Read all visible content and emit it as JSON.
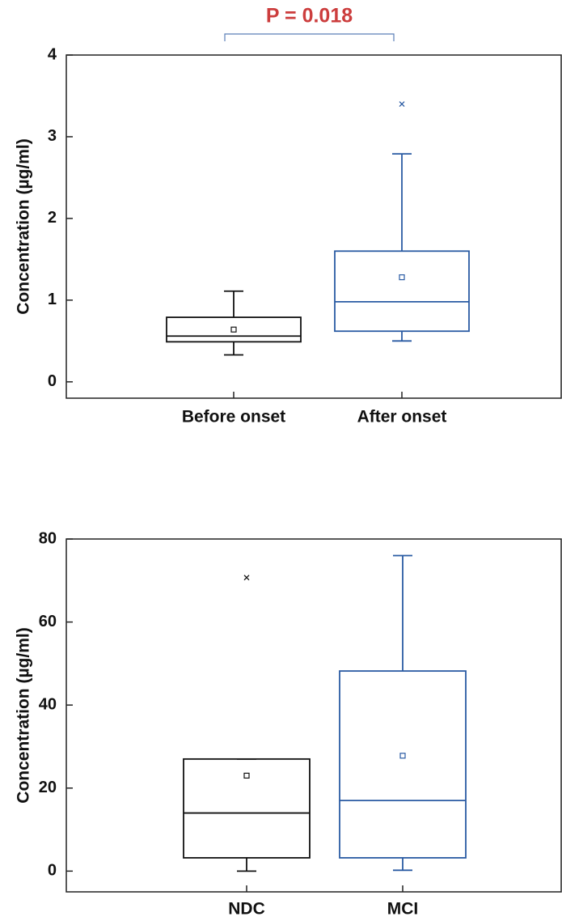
{
  "chart_data": [
    {
      "type": "box",
      "ylabel": "Concentration (µg/ml)",
      "annotation": "P = 0.018",
      "categories": [
        "Before onset",
        "After onset"
      ],
      "series": [
        {
          "color": "#111111",
          "whisker_low": 0.33,
          "q1": 0.49,
          "median": 0.56,
          "mean": 0.64,
          "q3": 0.79,
          "whisker_high": 1.11,
          "outliers": []
        },
        {
          "color": "#2a5ba3",
          "whisker_low": 0.5,
          "q1": 0.62,
          "median": 0.98,
          "mean": 1.28,
          "q3": 1.6,
          "whisker_high": 2.79,
          "outliers": [
            3.4
          ]
        }
      ],
      "ylim": [
        -0.2,
        4
      ],
      "yticks": [
        0,
        1,
        2,
        3,
        4
      ]
    },
    {
      "type": "box",
      "ylabel": "Concentration (µg/ml)",
      "categories": [
        "NDC",
        "MCI"
      ],
      "series": [
        {
          "color": "#111111",
          "whisker_low": 0,
          "q1": 3.2,
          "median": 14,
          "mean": 23,
          "q3": 27,
          "whisker_high": 27,
          "outliers": [
            70.7
          ]
        },
        {
          "color": "#2a5ba3",
          "whisker_low": 0.2,
          "q1": 3.2,
          "median": 17,
          "mean": 27.8,
          "q3": 48.2,
          "whisker_high": 76,
          "outliers": []
        }
      ],
      "ylim": [
        -5,
        80
      ],
      "yticks": [
        0,
        20,
        40,
        60,
        80
      ]
    }
  ]
}
